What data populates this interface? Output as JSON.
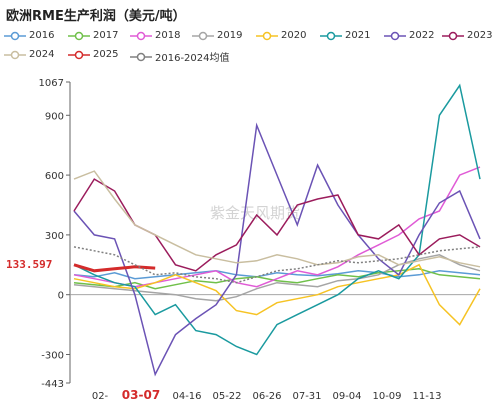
{
  "title": "欧洲RME生产利润（美元/吨）",
  "current_value_label": "133.597",
  "watermark": "紫金天风期货",
  "chart_data": {
    "type": "line",
    "x_ticks": [
      "02-",
      "03-07",
      "04-16",
      "05-22",
      "06-26",
      "07-31",
      "09-04",
      "10-09",
      "11-13"
    ],
    "highlight_tick": "03-07",
    "y_ticks": [
      1067,
      900,
      600,
      300,
      0,
      -300,
      -443
    ],
    "ylim": [
      -443,
      1067
    ],
    "current_value": 133.597,
    "series": [
      {
        "name": "2016",
        "color": "#5b9bd5",
        "values": [
          100,
          90,
          110,
          80,
          90,
          100,
          110,
          120,
          100,
          90,
          110,
          100,
          95,
          105,
          120,
          110,
          90,
          100,
          120,
          110,
          100
        ]
      },
      {
        "name": "2017",
        "color": "#70c04a",
        "values": [
          60,
          50,
          40,
          60,
          30,
          50,
          70,
          60,
          80,
          90,
          70,
          60,
          80,
          100,
          90,
          110,
          120,
          130,
          100,
          90,
          80
        ]
      },
      {
        "name": "2018",
        "color": "#e05bd6",
        "values": [
          100,
          80,
          60,
          40,
          60,
          80,
          100,
          120,
          60,
          40,
          80,
          120,
          100,
          140,
          200,
          250,
          300,
          380,
          420,
          600,
          640
        ]
      },
      {
        "name": "2019",
        "color": "#a5a5a5",
        "values": [
          50,
          40,
          30,
          20,
          10,
          0,
          -20,
          -30,
          -10,
          30,
          60,
          50,
          40,
          70,
          80,
          100,
          150,
          180,
          200,
          150,
          120
        ]
      },
      {
        "name": "2020",
        "color": "#f6c324",
        "values": [
          80,
          60,
          40,
          30,
          60,
          100,
          60,
          20,
          -80,
          -100,
          -40,
          -20,
          0,
          40,
          60,
          80,
          100,
          150,
          -50,
          -150,
          30
        ]
      },
      {
        "name": "2021",
        "color": "#1a9a9f",
        "values": [
          150,
          100,
          60,
          40,
          -100,
          -50,
          -180,
          -200,
          -260,
          -300,
          -150,
          -100,
          -50,
          0,
          80,
          120,
          80,
          200,
          900,
          1050,
          580
        ]
      },
      {
        "name": "2022",
        "color": "#6b53b5",
        "values": [
          420,
          300,
          280,
          0,
          -400,
          -200,
          -120,
          -50,
          100,
          850,
          600,
          350,
          650,
          450,
          300,
          180,
          100,
          300,
          460,
          520,
          280
        ]
      },
      {
        "name": "2023",
        "color": "#9b1c5c",
        "values": [
          420,
          580,
          520,
          350,
          300,
          150,
          120,
          200,
          250,
          400,
          300,
          450,
          480,
          500,
          300,
          280,
          350,
          200,
          280,
          300,
          240
        ]
      },
      {
        "name": "2024",
        "color": "#c9bea0",
        "values": [
          580,
          620,
          480,
          350,
          300,
          250,
          200,
          180,
          160,
          170,
          200,
          180,
          150,
          160,
          190,
          200,
          150,
          170,
          190,
          160,
          140
        ]
      },
      {
        "name": "2025",
        "color": "#d42b2b",
        "values": [
          150,
          120,
          130,
          140,
          133.597
        ]
      },
      {
        "name": "2016-2024均值",
        "color": "#808080",
        "values": [
          240,
          220,
          200,
          150,
          100,
          110,
          90,
          80,
          60,
          90,
          120,
          130,
          150,
          170,
          160,
          170,
          180,
          200,
          220,
          230,
          240
        ]
      }
    ]
  }
}
